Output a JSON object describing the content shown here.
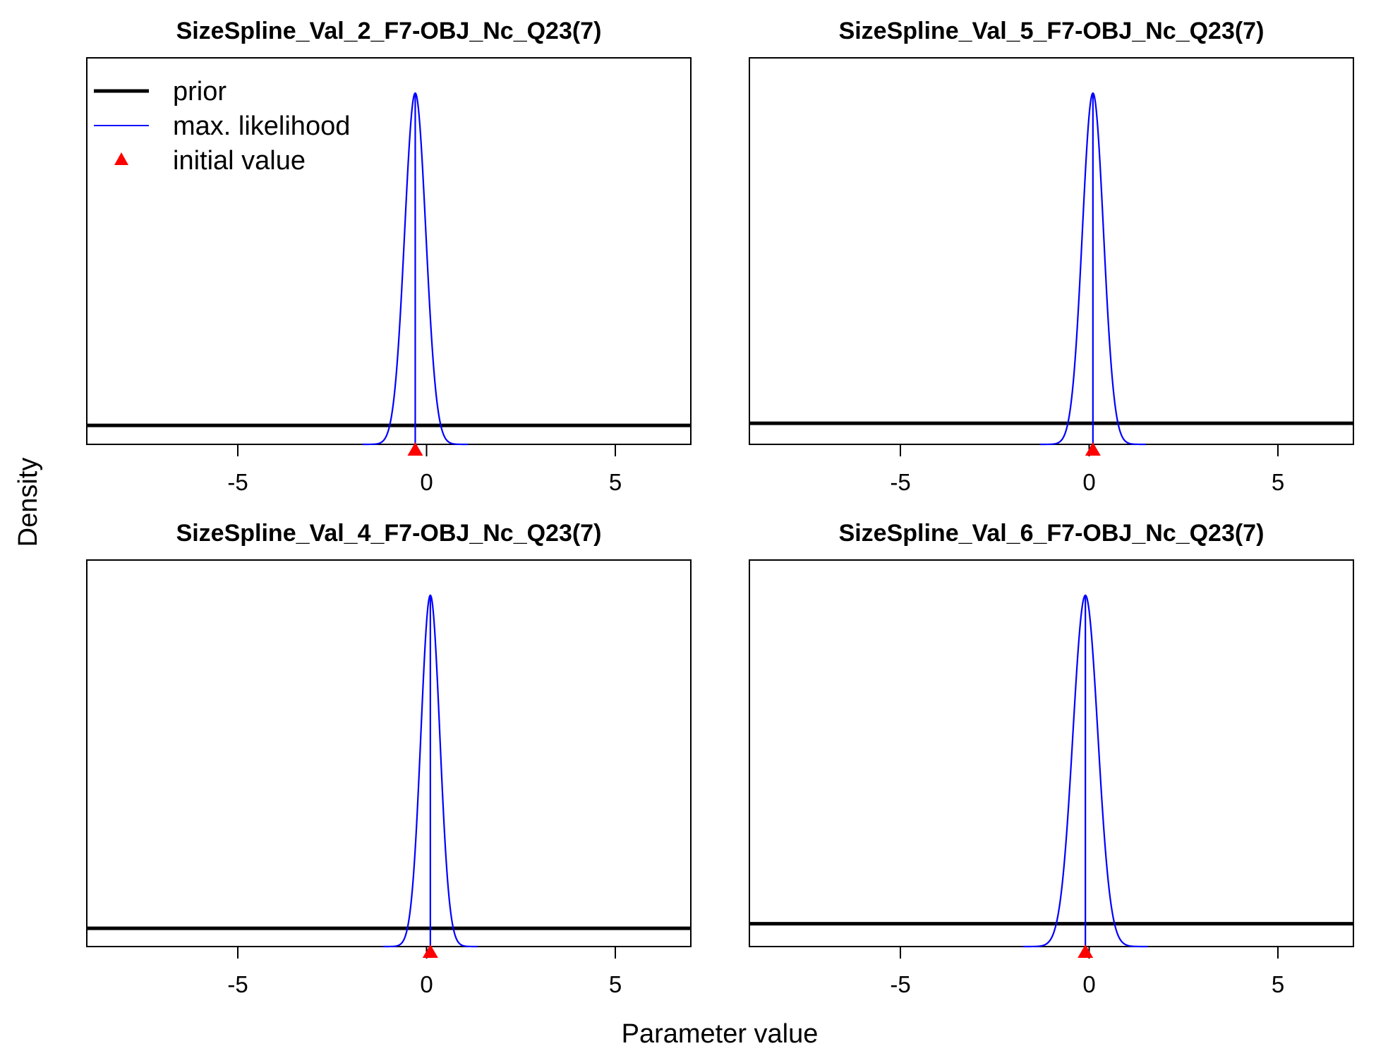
{
  "figure": {
    "ylabel": "Density",
    "xlabel": "Parameter value"
  },
  "legend": {
    "placement": "top-left of first panel",
    "items": [
      {
        "label": "prior",
        "color": "#000000",
        "style": "thick-line"
      },
      {
        "label": "max. likelihood",
        "color": "#0000ff",
        "style": "thin-line"
      },
      {
        "label": "initial value",
        "color": "#ff0000",
        "style": "triangle"
      }
    ]
  },
  "colors": {
    "prior": "#000000",
    "mle": "#0000ff",
    "initial": "#ff0000",
    "axis": "#000000"
  },
  "chart_data": [
    {
      "type": "line",
      "title": "SizeSpline_Val_2_F7-OBJ_Nc_Q23(7)",
      "xlim": [
        -9,
        7
      ],
      "x_ticks": [
        -5,
        0,
        5
      ],
      "x_tick_labels": [
        "-5",
        "0",
        "5"
      ],
      "prior_level": 0.054,
      "mle": {
        "mean": -0.3,
        "sd": 0.28
      },
      "initial_value": -0.3,
      "density_peak": 1.0
    },
    {
      "type": "line",
      "title": "SizeSpline_Val_5_F7-OBJ_Nc_Q23(7)",
      "xlim": [
        -9,
        7
      ],
      "x_ticks": [
        -5,
        0,
        5
      ],
      "x_tick_labels": [
        "-5",
        "0",
        "5"
      ],
      "prior_level": 0.06,
      "mle": {
        "mean": 0.1,
        "sd": 0.28
      },
      "initial_value": 0.1,
      "density_peak": 1.0
    },
    {
      "type": "line",
      "title": "SizeSpline_Val_4_F7-OBJ_Nc_Q23(7)",
      "xlim": [
        -9,
        7
      ],
      "x_ticks": [
        -5,
        0,
        5
      ],
      "x_tick_labels": [
        "-5",
        "0",
        "5"
      ],
      "prior_level": 0.052,
      "mle": {
        "mean": 0.1,
        "sd": 0.25
      },
      "initial_value": 0.1,
      "density_peak": 1.0
    },
    {
      "type": "line",
      "title": "SizeSpline_Val_6_F7-OBJ_Nc_Q23(7)",
      "xlim": [
        -9,
        7
      ],
      "x_ticks": [
        -5,
        0,
        5
      ],
      "x_tick_labels": [
        "-5",
        "0",
        "5"
      ],
      "prior_level": 0.065,
      "mle": {
        "mean": -0.1,
        "sd": 0.33
      },
      "initial_value": -0.1,
      "density_peak": 1.0
    }
  ]
}
